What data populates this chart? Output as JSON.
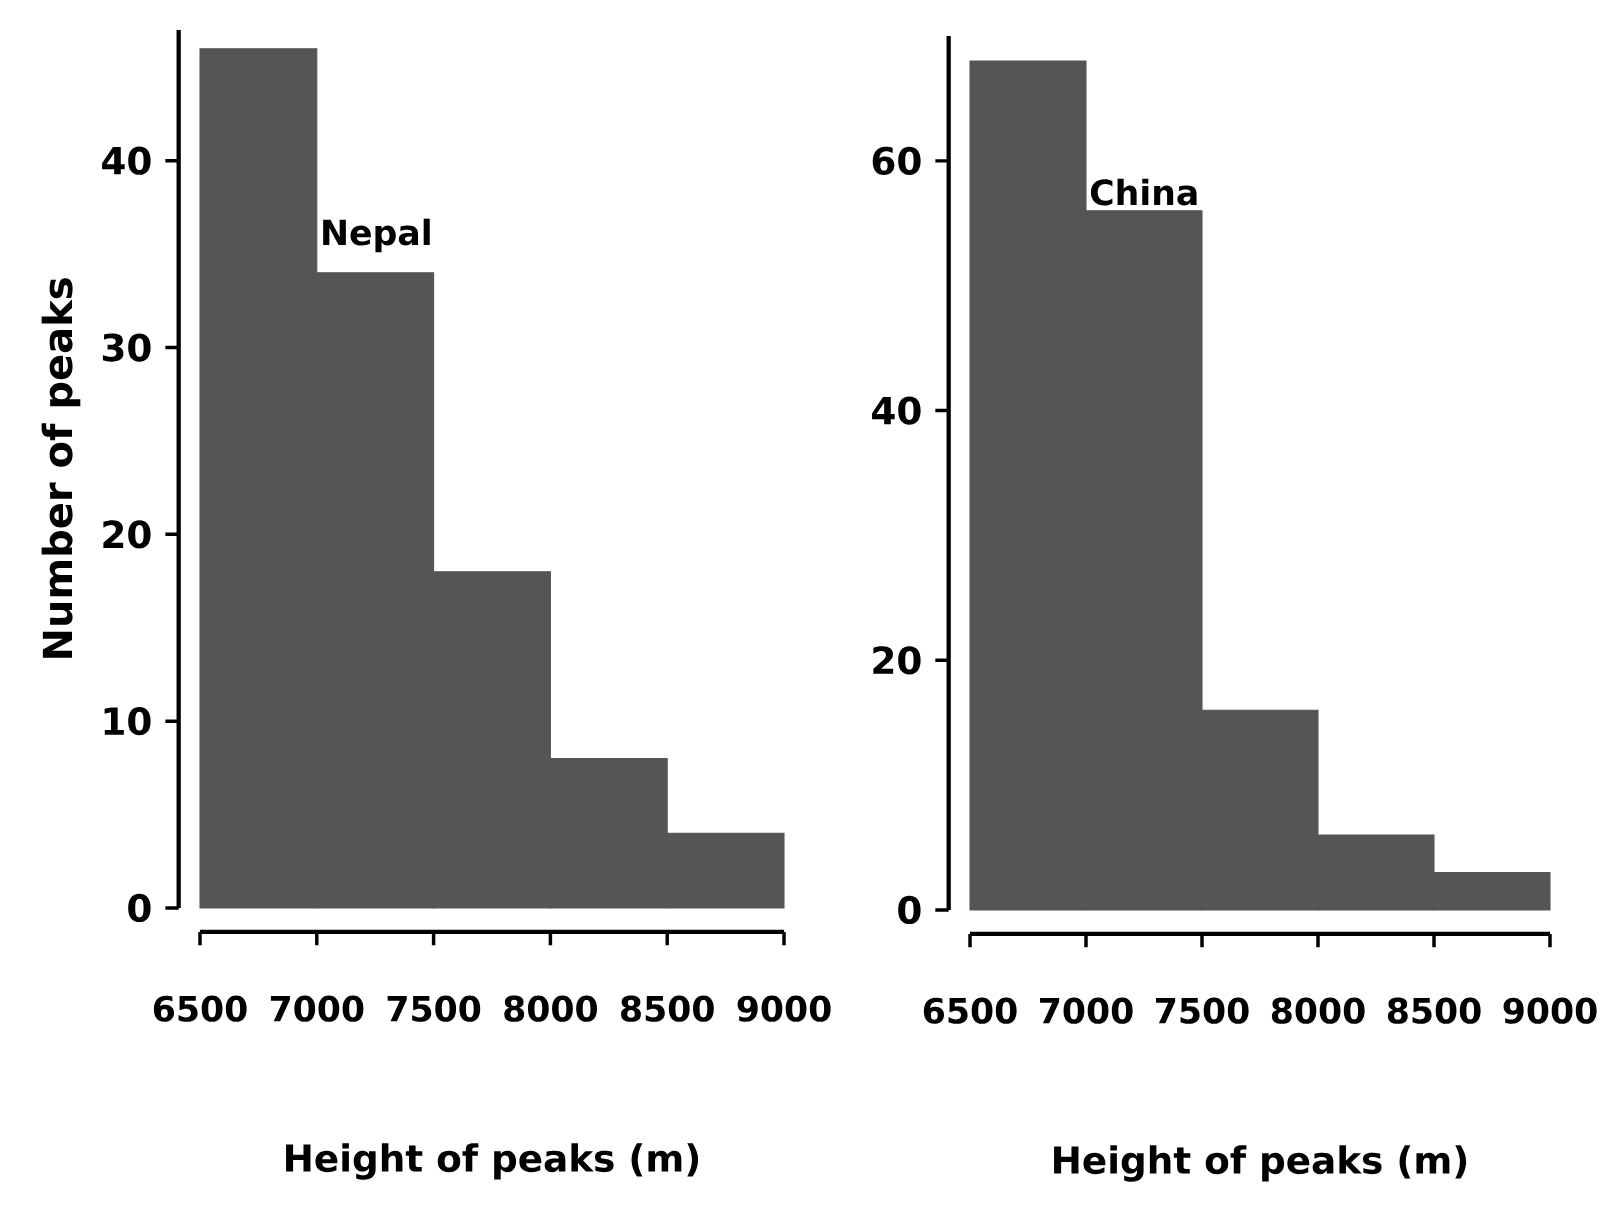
{
  "chart_data": [
    {
      "type": "histogram",
      "bins": [
        6500,
        7000,
        7500,
        8000,
        8500,
        9000
      ],
      "values": [
        46,
        34,
        18,
        8,
        4
      ],
      "color": "#555555",
      "xlim": [
        6500,
        9000
      ],
      "xticks": [
        6500,
        7000,
        7500,
        8000,
        8500,
        9000
      ],
      "ylim": [
        0,
        47
      ],
      "yticks": [
        0,
        10,
        20,
        30,
        40
      ],
      "xlabel": "Height of peaks (m)",
      "ylabel": "Number of peaks",
      "grid": false,
      "annotations": [
        {
          "text": "Nepal",
          "x": 7000,
          "y": 36
        }
      ]
    },
    {
      "type": "histogram",
      "bins": [
        6500,
        7000,
        7500,
        8000,
        8500,
        9000
      ],
      "values": [
        68,
        56,
        16,
        6,
        3
      ],
      "color": "#555555",
      "xlim": [
        6500,
        9000
      ],
      "xticks": [
        6500,
        7000,
        7500,
        8000,
        8500,
        9000
      ],
      "ylim": [
        0,
        70
      ],
      "yticks": [
        0,
        20,
        40,
        60
      ],
      "xlabel": "Height of peaks (m)",
      "grid": false,
      "annotations": [
        {
          "text": "China",
          "x": 7000,
          "y": 57.5
        }
      ]
    }
  ]
}
